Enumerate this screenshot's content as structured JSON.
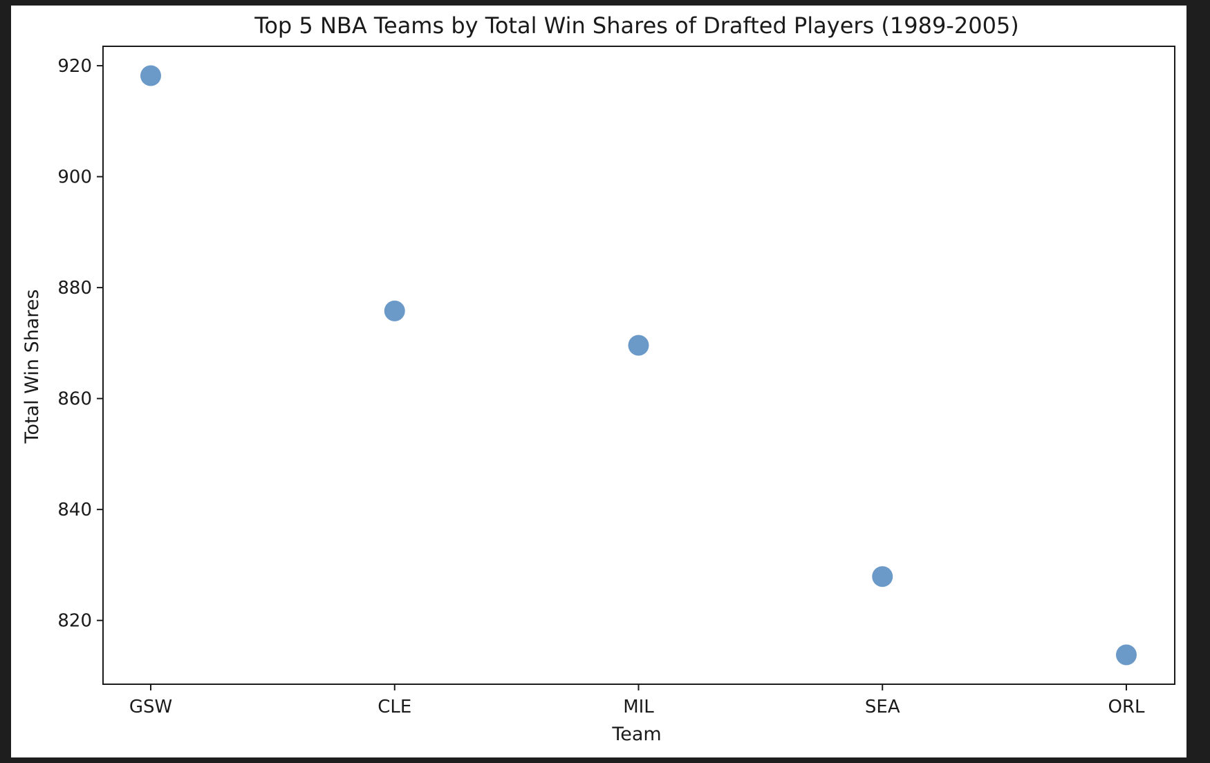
{
  "chart_data": {
    "type": "scatter",
    "title": "Top 5 NBA Teams by Total Win Shares of Drafted Players (1989-2005)",
    "xlabel": "Team",
    "ylabel": "Total Win Shares",
    "categories": [
      "GSW",
      "CLE",
      "MIL",
      "SEA",
      "ORL"
    ],
    "values": [
      918.2,
      875.8,
      869.6,
      827.9,
      813.8
    ],
    "ylim": [
      808.5,
      923.5
    ],
    "yticks": [
      820,
      840,
      860,
      880,
      900,
      920
    ],
    "grid": false,
    "marker_color": "#5b8ec2"
  }
}
